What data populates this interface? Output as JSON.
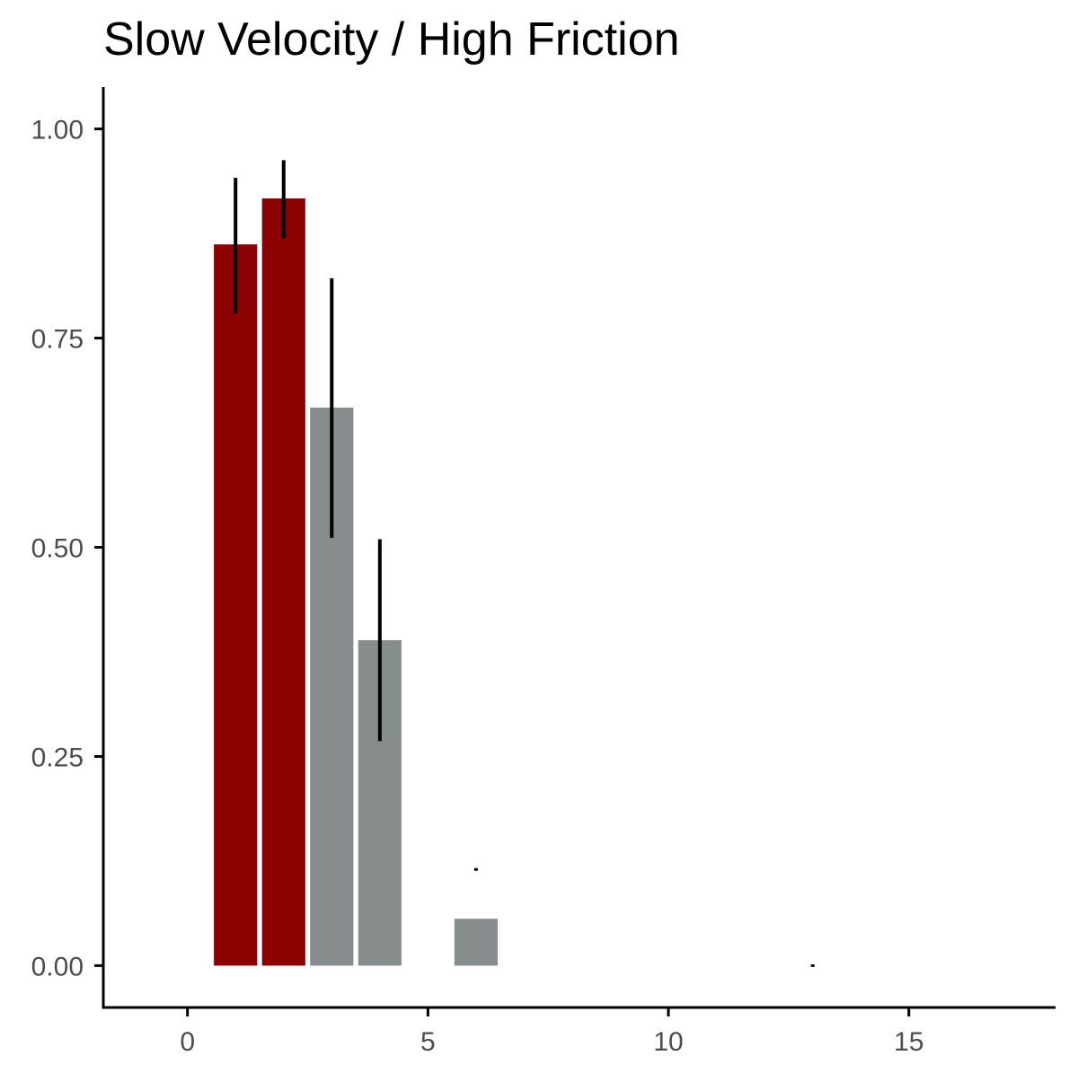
{
  "chart_data": {
    "type": "bar",
    "title": "Slow Velocity / High Friction",
    "xlabel": "",
    "ylabel": "",
    "xlim": [
      -1.75,
      18.05
    ],
    "ylim": [
      -0.05,
      1.05
    ],
    "x_ticks": [
      0,
      5,
      10,
      15
    ],
    "x_tick_labels": [
      "0",
      "5",
      "10",
      "15"
    ],
    "y_ticks": [
      0,
      0.25,
      0.5,
      0.75,
      1.0
    ],
    "y_tick_labels": [
      "0.00",
      "0.25",
      "0.50",
      "0.75",
      "1.00"
    ],
    "grid": false,
    "legend": "none",
    "bar_width": 0.9,
    "colors": {
      "highlight": "#8b0000",
      "default": "#878d8c",
      "error": "#000000",
      "axis": "#000000",
      "tick_label": "#4d4d4d"
    },
    "bars": [
      {
        "x": 1,
        "value": 0.862,
        "ci": [
          0.781,
          0.94
        ],
        "group": "highlight"
      },
      {
        "x": 2,
        "value": 0.917,
        "ci": [
          0.871,
          0.961
        ],
        "group": "highlight"
      },
      {
        "x": 3,
        "value": 0.667,
        "ci": [
          0.513,
          0.82
        ],
        "group": "default"
      },
      {
        "x": 4,
        "value": 0.389,
        "ci": [
          0.27,
          0.508
        ],
        "group": "default"
      },
      {
        "x": 6,
        "value": 0.056,
        "ci": [
          0.115,
          0.115
        ],
        "group": "default"
      },
      {
        "x": 13,
        "value": 0.0,
        "ci": [
          0.0,
          0.0
        ],
        "group": "default"
      }
    ]
  }
}
